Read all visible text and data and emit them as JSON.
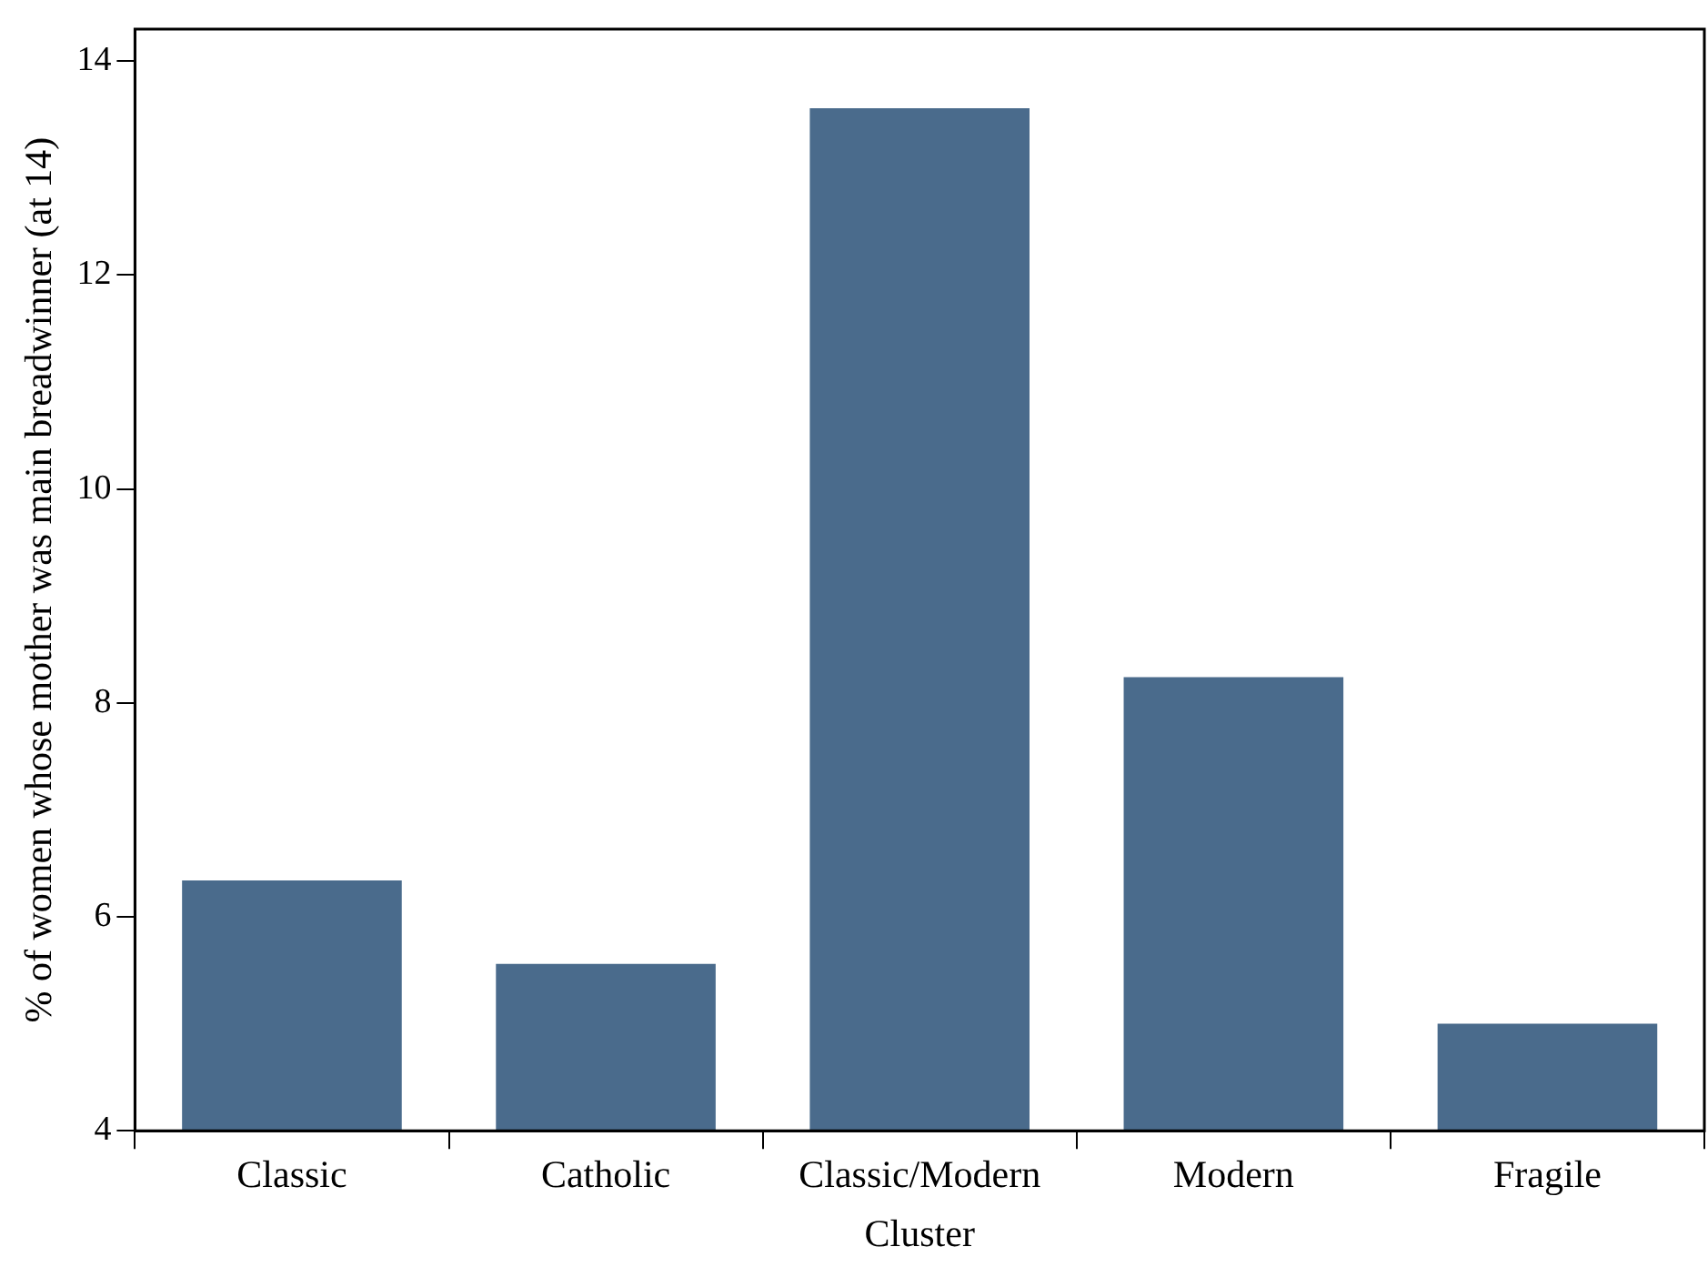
{
  "chart_data": {
    "type": "bar",
    "xlabel": "Cluster",
    "ylabel": "% of women whose mother was main breadwinner (at 14)",
    "categories": [
      "Classic",
      "Catholic",
      "Classic/Modern",
      "Modern",
      "Fragile"
    ],
    "values": [
      6.34,
      5.56,
      13.56,
      8.24,
      5.0
    ],
    "color": "#4a6b8c",
    "ylim": [
      4,
      14.3
    ],
    "yticks": [
      4,
      6,
      8,
      10,
      12,
      14
    ],
    "grid": false,
    "legend": false
  }
}
